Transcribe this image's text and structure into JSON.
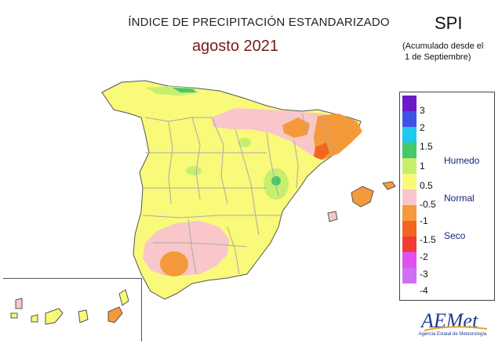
{
  "header": {
    "title": "ÍNDICE DE PRECIPITACIÓN ESTANDARIZADO",
    "subtitle": "agosto 2021",
    "index_code": "SPI",
    "note_line1": "(Acumulado desde el",
    "note_line2": "1 de Septiembre)"
  },
  "legend": {
    "ticks": [
      "3",
      "2",
      "1.5",
      "1",
      "0.5",
      "-0.5",
      "-1",
      "-1.5",
      "-2",
      "-3",
      "-4"
    ],
    "classes": [
      {
        "color": "#6a1bc8"
      },
      {
        "color": "#3f51e6"
      },
      {
        "color": "#1ec8ee"
      },
      {
        "color": "#45c86a"
      },
      {
        "color": "#c6ef6f"
      },
      {
        "color": "#f9f97a"
      },
      {
        "color": "#f9c6c9"
      },
      {
        "color": "#f49a3a"
      },
      {
        "color": "#f2651e"
      },
      {
        "color": "#f23b33"
      },
      {
        "color": "#e24ff0"
      },
      {
        "color": "#cf6ef5"
      }
    ],
    "label_wet": "Humedo",
    "label_normal": "Normal",
    "label_dry": "Seco",
    "wet_symbol_color": "#1a237e",
    "dry_symbol_color": "#8b1a1a"
  },
  "map": {
    "land_color": "#f9f97a",
    "border_color": "#aaaaaa",
    "coast_color": "#555555"
  },
  "logo": {
    "text": "AEMet",
    "caption": "Agencia Estatal de Meteorología"
  }
}
